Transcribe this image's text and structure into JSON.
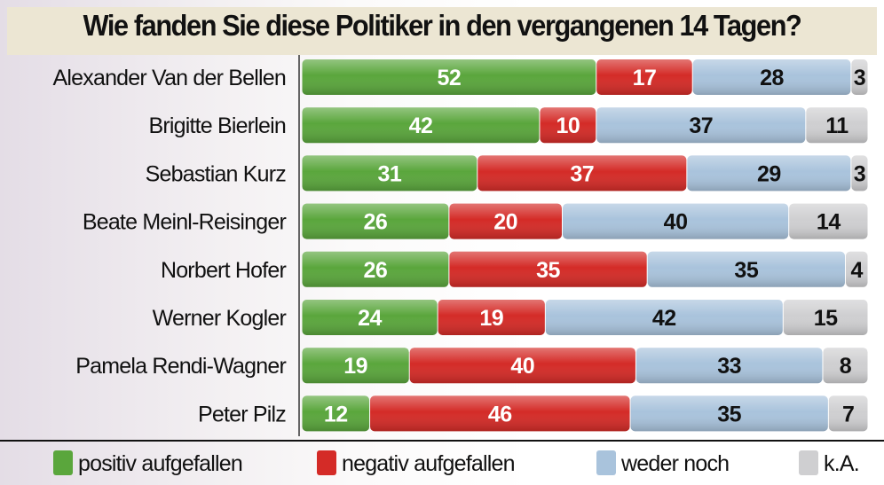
{
  "chart_data": {
    "type": "bar",
    "orientation": "horizontal",
    "stacked": true,
    "title": "Wie fanden Sie diese Politiker in den vergangenen 14 Tagen?",
    "categories": [
      "Alexander Van der Bellen",
      "Brigitte Bierlein",
      "Sebastian Kurz",
      "Beate Meinl-Reisinger",
      "Norbert Hofer",
      "Werner Kogler",
      "Pamela Rendi-Wagner",
      "Peter Pilz"
    ],
    "series": [
      {
        "name": "positiv aufgefallen",
        "color": "#5aa63c",
        "values": [
          52,
          42,
          31,
          26,
          26,
          24,
          19,
          12
        ]
      },
      {
        "name": "negativ aufgefallen",
        "color": "#d42b27",
        "values": [
          17,
          10,
          37,
          20,
          35,
          19,
          40,
          46
        ]
      },
      {
        "name": "weder noch",
        "color": "#a9c3dc",
        "values": [
          28,
          37,
          29,
          40,
          35,
          42,
          33,
          35
        ]
      },
      {
        "name": "k.A.",
        "color": "#cfcfd1",
        "values": [
          3,
          11,
          3,
          14,
          4,
          15,
          8,
          7
        ]
      }
    ],
    "xlim": [
      0,
      100
    ],
    "legend": "bottom",
    "grid": false
  }
}
